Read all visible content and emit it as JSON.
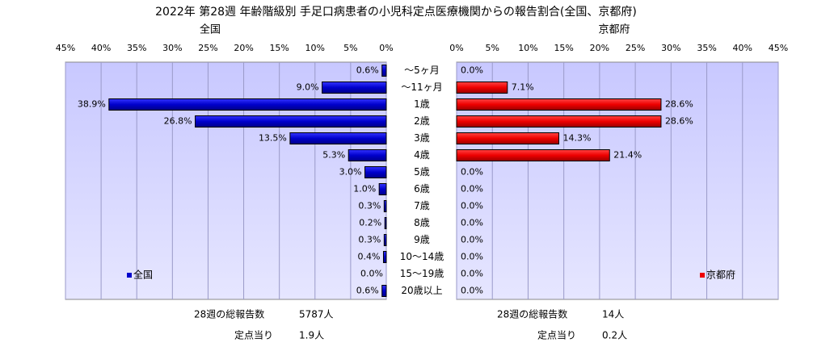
{
  "title": "2022年 第28週  年齢階級別 手足口病患者の小児科定点医療機関からの報告割合(全国、京都府)",
  "categories": [
    "～5ヶ月",
    "～11ヶ月",
    "1歳",
    "2歳",
    "3歳",
    "4歳",
    "5歳",
    "6歳",
    "7歳",
    "8歳",
    "9歳",
    "10～14歳",
    "15～19歳",
    "20歳以上"
  ],
  "chart_data": [
    {
      "type": "bar",
      "title": "全国",
      "color": "#0000cc",
      "legend": "lower left",
      "grid": true,
      "series": [
        {
          "name": "全国",
          "color": "#0000cc",
          "values": [
            0.6,
            9.0,
            38.9,
            26.8,
            13.5,
            5.3,
            3.0,
            1.0,
            0.3,
            0.2,
            0.3,
            0.4,
            0.0,
            0.6
          ],
          "value_labels": [
            "0.6%",
            "9.0%",
            "38.9%",
            "26.8%",
            "13.5%",
            "5.3%",
            "3.0%",
            "1.0%",
            "0.3%",
            "0.2%",
            "0.3%",
            "0.4%",
            "0.0%",
            "0.6%"
          ]
        }
      ],
      "xlim": [
        0,
        45
      ],
      "xticks": [
        {
          "value": 0,
          "label": "0%"
        },
        {
          "value": 5,
          "label": "5%"
        },
        {
          "value": 10,
          "label": "10%"
        },
        {
          "value": 15,
          "label": "15%"
        },
        {
          "value": 20,
          "label": "20%"
        },
        {
          "value": 25,
          "label": "25%"
        },
        {
          "value": 30,
          "label": "30%"
        },
        {
          "value": 35,
          "label": "35%"
        },
        {
          "value": 40,
          "label": "40%"
        },
        {
          "value": 45,
          "label": "45%"
        }
      ],
      "notes": [
        {
          "label": "28週の総報告数",
          "value": "5787人"
        },
        {
          "label": "定点当り",
          "value": "1.9人"
        }
      ]
    },
    {
      "type": "bar",
      "title": "京都府",
      "color": "#ee0000",
      "legend": "lower right",
      "grid": true,
      "series": [
        {
          "name": "京都府",
          "color": "#ee0000",
          "values": [
            0.0,
            7.1,
            28.6,
            28.6,
            14.3,
            21.4,
            0.0,
            0.0,
            0.0,
            0.0,
            0.0,
            0.0,
            0.0,
            0.0
          ],
          "value_labels": [
            "0.0%",
            "7.1%",
            "28.6%",
            "28.6%",
            "14.3%",
            "21.4%",
            "0.0%",
            "0.0%",
            "0.0%",
            "0.0%",
            "0.0%",
            "0.0%",
            "0.0%",
            "0.0%"
          ]
        }
      ],
      "xlim": [
        0,
        45
      ],
      "xticks": [
        {
          "value": 0,
          "label": "0%"
        },
        {
          "value": 5,
          "label": "5%"
        },
        {
          "value": 10,
          "label": "10%"
        },
        {
          "value": 15,
          "label": "15%"
        },
        {
          "value": 20,
          "label": "20%"
        },
        {
          "value": 25,
          "label": "25%"
        },
        {
          "value": 30,
          "label": "30%"
        },
        {
          "value": 35,
          "label": "35%"
        },
        {
          "value": 40,
          "label": "40%"
        },
        {
          "value": 45,
          "label": "45%"
        }
      ],
      "notes": [
        {
          "label": "28週の総報告数",
          "value": "14人"
        },
        {
          "label": "定点当り",
          "value": "0.2人"
        }
      ]
    }
  ]
}
